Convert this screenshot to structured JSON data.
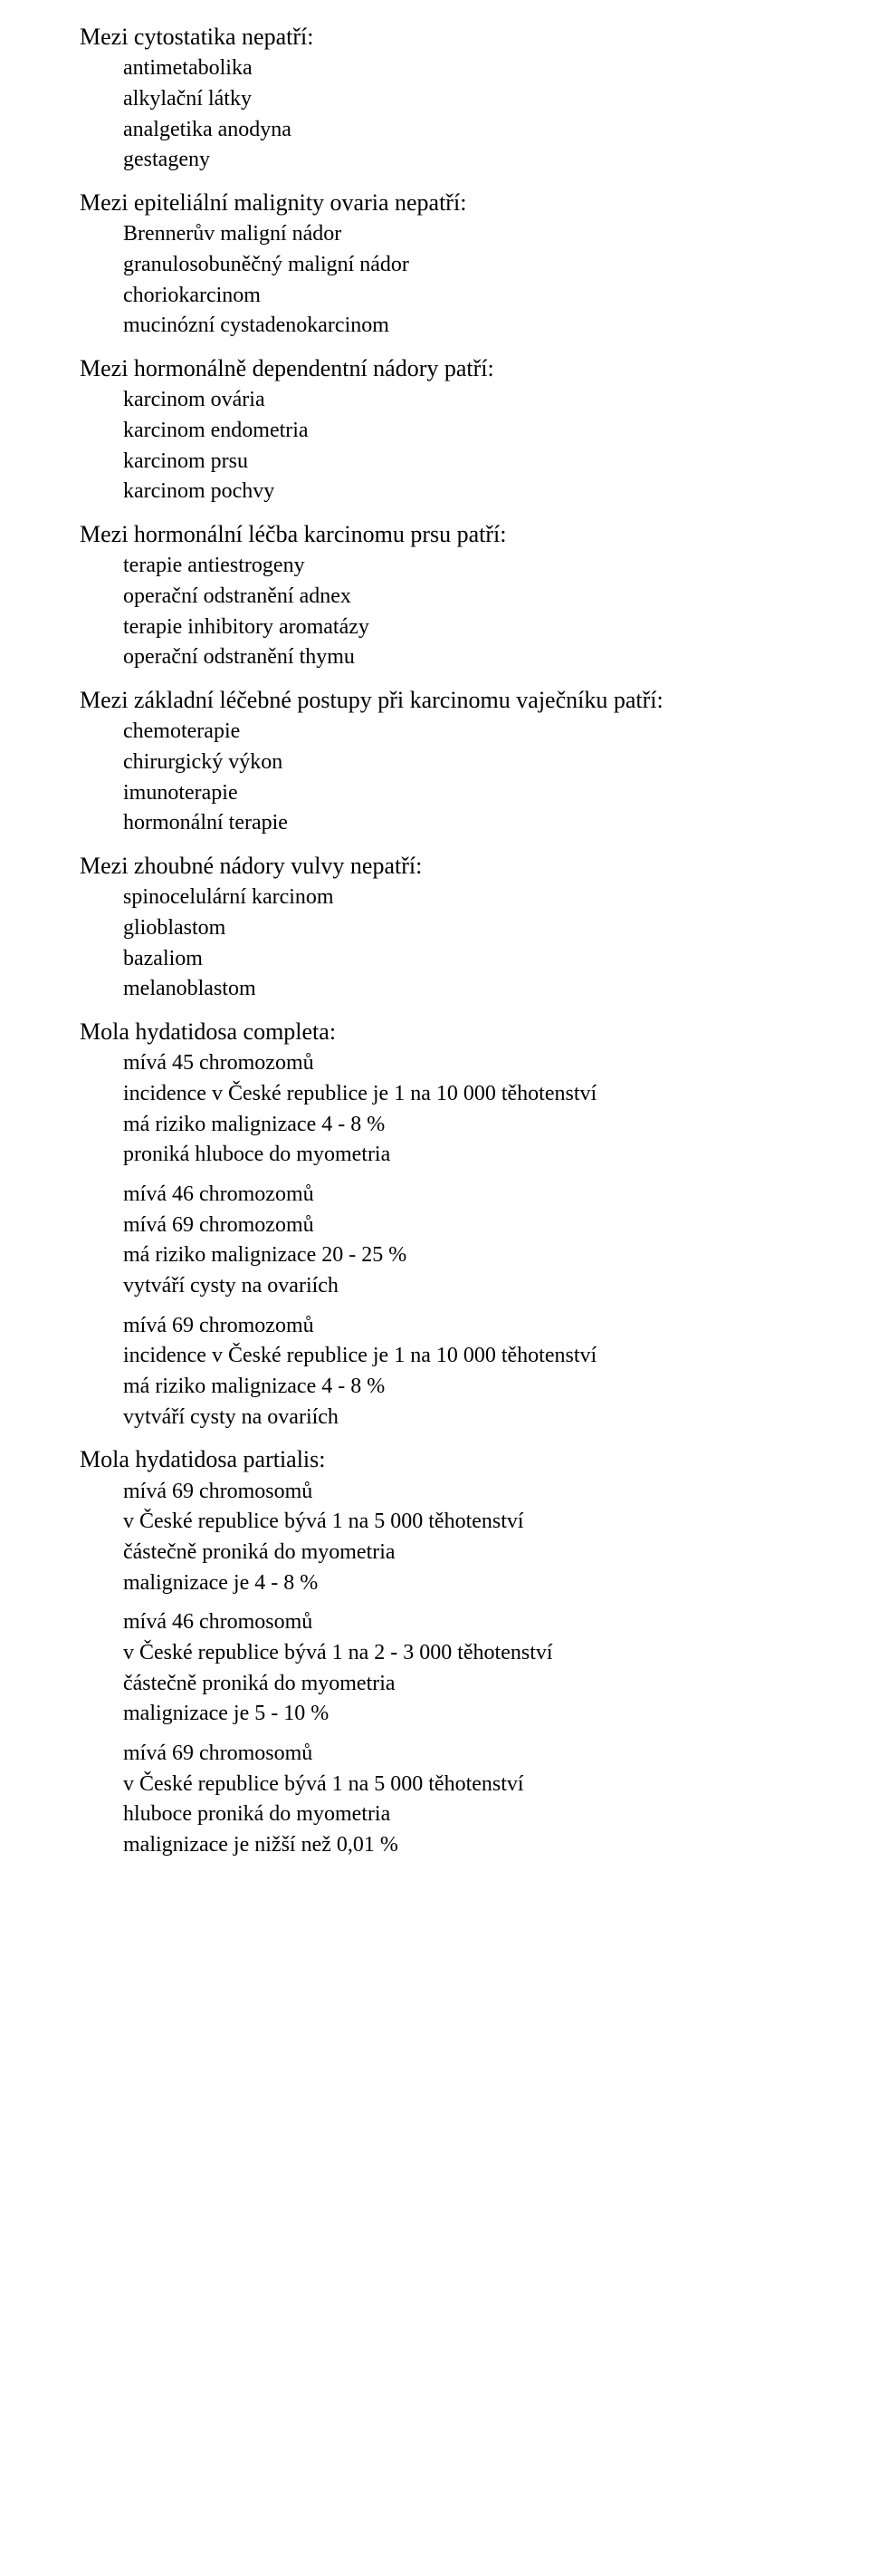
{
  "sections": [
    {
      "heading": "Mezi cytostatika nepatří:",
      "groups": [
        [
          "antimetabolika",
          "alkylační látky",
          "analgetika anodyna",
          "gestageny"
        ]
      ]
    },
    {
      "heading": "Mezi epiteliální malignity ovaria nepatří:",
      "groups": [
        [
          "Brennerův maligní nádor",
          "granulosobuněčný maligní nádor",
          "choriokarcinom",
          "mucinózní cystadenokarcinom"
        ]
      ]
    },
    {
      "heading": "Mezi hormonálně dependentní nádory patří:",
      "groups": [
        [
          "karcinom ovária",
          "karcinom endometria",
          "karcinom prsu",
          "karcinom pochvy"
        ]
      ]
    },
    {
      "heading": "Mezi hormonální léčba karcinomu prsu patří:",
      "groups": [
        [
          "terapie antiestrogeny",
          "operační odstranění adnex",
          "terapie inhibitory aromatázy",
          "operační odstranění thymu"
        ]
      ]
    },
    {
      "heading": "Mezi základní léčebné postupy při karcinomu vaječníku patří:",
      "groups": [
        [
          "chemoterapie",
          "chirurgický výkon",
          "imunoterapie",
          "hormonální terapie"
        ]
      ]
    },
    {
      "heading": "Mezi zhoubné nádory vulvy nepatří:",
      "groups": [
        [
          "spinocelulární karcinom",
          "glioblastom",
          "bazaliom",
          "melanoblastom"
        ]
      ]
    },
    {
      "heading": "Mola hydatidosa completa:",
      "groups": [
        [
          "mívá 45 chromozomů",
          "incidence v České republice je 1 na 10 000 těhotenství",
          "má riziko malignizace 4 - 8 %",
          "proniká hluboce do myometria"
        ],
        [
          "mívá 46 chromozomů",
          "mívá 69 chromozomů",
          "má riziko malignizace 20 - 25 %",
          "vytváří cysty na ovariích"
        ],
        [
          "mívá 69 chromozomů",
          "incidence v České republice je 1 na 10 000 těhotenství",
          "má riziko malignizace 4 - 8 %",
          "vytváří cysty na ovariích"
        ]
      ]
    },
    {
      "heading": "Mola hydatidosa partialis:",
      "groups": [
        [
          "mívá 69 chromosomů",
          "v České republice bývá 1 na 5 000 těhotenství",
          "částečně proniká do myometria",
          "malignizace je 4 - 8 %"
        ],
        [
          "mívá 46 chromosomů",
          "v České republice bývá 1 na 2 - 3 000 těhotenství",
          "částečně proniká do myometria",
          "malignizace je 5 - 10 %"
        ],
        [
          "mívá 69 chromosomů",
          "v České republice bývá 1 na 5 000 těhotenství",
          "hluboce proniká do myometria",
          "malignizace je nižší než 0,01 %"
        ]
      ]
    }
  ]
}
